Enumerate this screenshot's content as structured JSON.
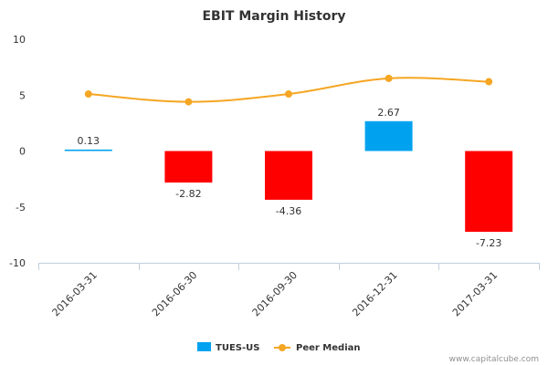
{
  "chart_data": {
    "type": "bar",
    "title": "EBIT Margin History",
    "categories": [
      "2016-03-31",
      "2016-06-30",
      "2016-09-30",
      "2016-12-31",
      "2017-03-31"
    ],
    "ylim": [
      -10,
      10
    ],
    "yticks": [
      10,
      5,
      0,
      -5,
      -10
    ],
    "ytick_labels": [
      "10",
      "5",
      "0",
      "-5",
      "-10"
    ],
    "grid": false,
    "legend": "bottom-center",
    "series": [
      {
        "name": "TUES-US",
        "type": "bar",
        "values": [
          0.13,
          -2.82,
          -4.36,
          2.67,
          -7.23
        ],
        "labels": [
          "0.13",
          "-2.82",
          "-4.36",
          "2.67",
          "-7.23"
        ],
        "color_positive": "#00a2f0",
        "color_negative": "#ff0000"
      },
      {
        "name": "Peer Median",
        "type": "line",
        "values": [
          5.1,
          4.4,
          5.1,
          6.5,
          6.2
        ],
        "color": "#f5a623"
      }
    ]
  },
  "credit": "www.capitalcube.com"
}
